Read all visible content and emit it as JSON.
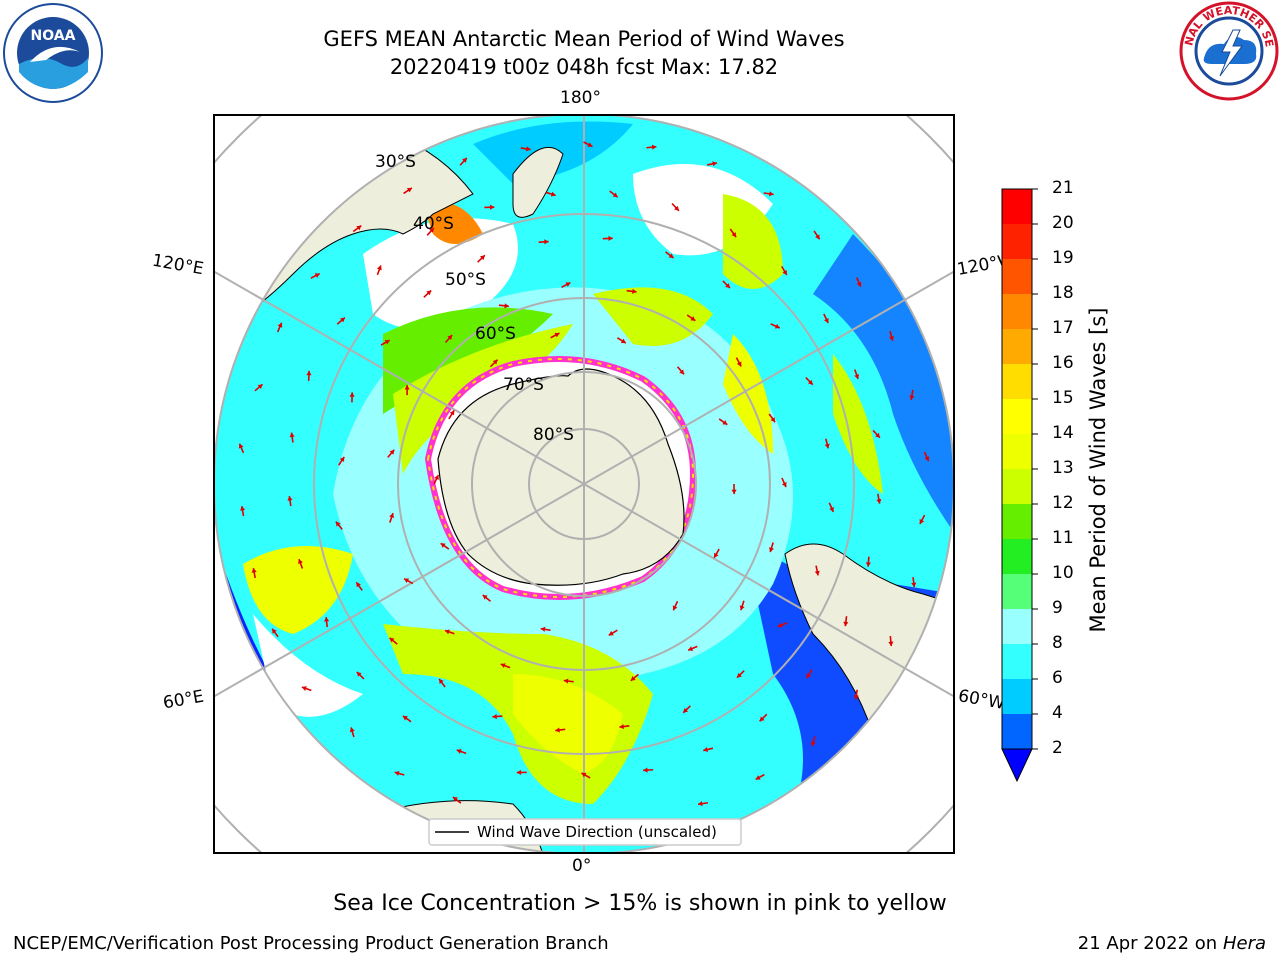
{
  "title": "GEFS MEAN Antarctic Mean Period of Wind Waves",
  "subtitle": "20220419 t00z 048h fcst   Max: 17.82",
  "longitude_labels": {
    "top": "180°",
    "bottom": "0°",
    "left_upper": "120°E",
    "left_lower": "60°E",
    "right_upper": "120°W",
    "right_lower": "60°W"
  },
  "latitude_labels": [
    "30°S",
    "40°S",
    "50°S",
    "60°S",
    "70°S",
    "80°S"
  ],
  "legend": {
    "line_label": "Wind Wave Direction (unscaled)"
  },
  "colorbar": {
    "label": "Mean Period of Wind Waves [s]",
    "ticks": [
      "2",
      "4",
      "6",
      "8",
      "9",
      "10",
      "11",
      "12",
      "13",
      "14",
      "15",
      "16",
      "17",
      "18",
      "19",
      "20",
      "21"
    ],
    "colors": [
      "#0066ff",
      "#00ccff",
      "#33ffff",
      "#99ffff",
      "#55ff77",
      "#22ee22",
      "#66ee00",
      "#ccff00",
      "#eeff00",
      "#ffff00",
      "#ffdd00",
      "#ffaa00",
      "#ff8800",
      "#ff5500",
      "#ff2200",
      "#ff0000"
    ],
    "under_color": "#0000ff"
  },
  "caption": "Sea Ice Concentration > 15% is shown in pink to yellow",
  "footer": {
    "left": "NCEP/EMC/Verification Post Processing Product Generation Branch",
    "date": "21 Apr 2022 on",
    "host": "Hera"
  },
  "logos": {
    "left": "noaa-logo",
    "right": "nws-logo",
    "noaa_text": "NOAA",
    "nws_text": "NATIONAL WEATHER SERVICE"
  }
}
